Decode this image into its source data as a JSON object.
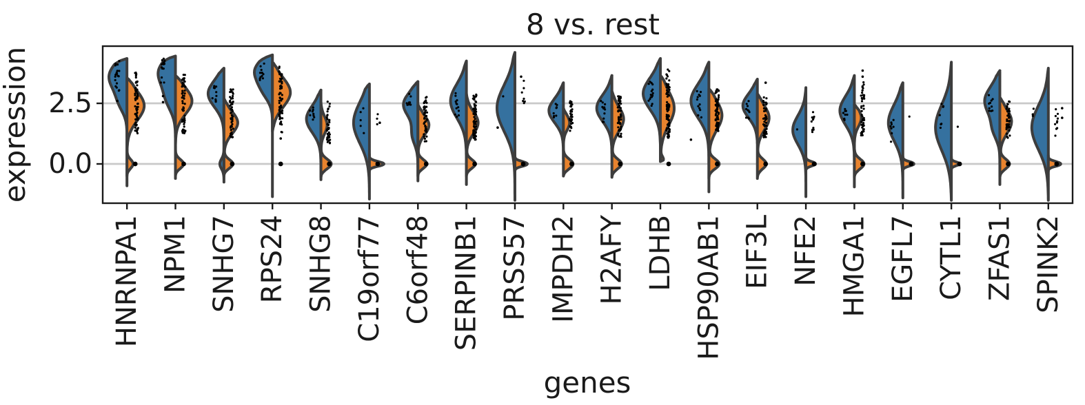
{
  "figure": {
    "title": "8 vs. rest",
    "xlabel": "genes",
    "ylabel": "expression",
    "ytick_labels": [
      "2.5",
      "0.0"
    ]
  },
  "colors": {
    "group_fill": "#35719f",
    "rest_fill": "#e8832e",
    "violin_edge": "#3d3d3d",
    "frame": "#1a1a1a",
    "grid": "#c9c9c9",
    "dots": "#000000",
    "text": "#1a1a1a",
    "background": "#ffffff"
  },
  "chart_data": {
    "type": "violin",
    "title": "8 vs. rest",
    "xlabel": "genes",
    "ylabel": "expression",
    "ylim": [
      -1.62,
      4.86
    ],
    "yticks": [
      2.5,
      0.0
    ],
    "ytick_labels": [
      "2.5",
      "0.0"
    ],
    "grid": "horizontal-at-yticks",
    "groups": [
      {
        "name": "8",
        "side": "left",
        "color": "#35719f"
      },
      {
        "name": "rest",
        "side": "right",
        "color": "#e8832e"
      }
    ],
    "categories": [
      "HNRNPA1",
      "NPM1",
      "SNHG7",
      "RPS24",
      "SNHG8",
      "C19orf77",
      "C6orf48",
      "SERPINB1",
      "PRSS57",
      "IMPDH2",
      "H2AFY",
      "LDHB",
      "HSP90AB1",
      "EIF3L",
      "NFE2",
      "HMGA1",
      "EGFL7",
      "CYTL1",
      "ZFAS1",
      "SPINK2"
    ],
    "violins": [
      {
        "name": "HNRNPA1",
        "left": {
          "range": [
            -0.9,
            4.35
          ],
          "bumps": [
            [
              3.6,
              0.6,
              26
            ],
            [
              2.5,
              0.4,
              8
            ]
          ]
        },
        "right": {
          "range": [
            -0.5,
            3.55
          ],
          "bumps": [
            [
              2.4,
              0.6,
              25
            ],
            [
              0,
              0.18,
              9
            ]
          ]
        },
        "dots": {
          "main": [
            14,
            1.2,
            3.9,
            65
          ],
          "side": [
            -14,
            3.0,
            4.25,
            20
          ],
          "zero": true,
          "extra": [
            [
              -14,
              2.6
            ]
          ]
        }
      },
      {
        "name": "NPM1",
        "left": {
          "range": [
            -0.6,
            4.45
          ],
          "bumps": [
            [
              3.8,
              0.55,
              24
            ],
            [
              2.7,
              0.5,
              12
            ]
          ]
        },
        "right": {
          "range": [
            -0.5,
            3.65
          ],
          "bumps": [
            [
              2.6,
              0.55,
              24
            ],
            [
              0,
              0.18,
              12
            ]
          ]
        },
        "dots": {
          "main": [
            12,
            1.2,
            3.7,
            60
          ],
          "side": [
            -18,
            3.3,
            4.35,
            14
          ],
          "zero": true,
          "extra": [
            [
              -18,
              2.8
            ],
            [
              -18,
              2.55
            ]
          ]
        }
      },
      {
        "name": "SNHG7",
        "left": {
          "range": [
            -0.75,
            3.95
          ],
          "bumps": [
            [
              2.9,
              0.55,
              23
            ],
            [
              0,
              0.2,
              6
            ]
          ]
        },
        "right": {
          "range": [
            -0.5,
            2.7
          ],
          "bumps": [
            [
              1.7,
              0.45,
              20
            ],
            [
              0,
              0.18,
              13
            ]
          ]
        },
        "dots": {
          "main": [
            11,
            1.1,
            3.3,
            55
          ],
          "side": [
            -14,
            2.5,
            3.4,
            10
          ],
          "zero": true,
          "extra": []
        }
      },
      {
        "name": "RPS24",
        "left": {
          "range": [
            -1.35,
            4.5
          ],
          "bumps": [
            [
              3.85,
              0.5,
              25
            ],
            [
              3.0,
              0.4,
              10
            ]
          ]
        },
        "right": {
          "range": [
            1.35,
            4.2
          ],
          "bumps": [
            [
              2.95,
              0.6,
              26
            ]
          ]
        },
        "dots": {
          "main": [
            12,
            1.3,
            4.1,
            60
          ],
          "side": [
            -15,
            3.3,
            4.3,
            12
          ],
          "zero": true,
          "extra": [
            [
              12,
              1.05
            ]
          ]
        }
      },
      {
        "name": "SNHG8",
        "left": {
          "range": [
            -0.65,
            3.05
          ],
          "bumps": [
            [
              1.85,
              0.55,
              21
            ]
          ]
        },
        "right": {
          "range": [
            -0.55,
            2.55
          ],
          "bumps": [
            [
              1.6,
              0.35,
              9
            ],
            [
              0,
              0.2,
              15
            ]
          ]
        },
        "dots": {
          "main": [
            11,
            0.85,
            2.6,
            40
          ],
          "side": [
            -13,
            1.6,
            2.5,
            9
          ],
          "zero": true,
          "extra": []
        }
      },
      {
        "name": "C19orf77",
        "left": {
          "range": [
            -1.45,
            3.3
          ],
          "bumps": [
            [
              1.7,
              0.85,
              23
            ]
          ]
        },
        "right": {
          "range": [
            -0.3,
            0.4
          ],
          "bumps": [
            [
              0,
              0.1,
              21
            ]
          ]
        },
        "dots": {
          "main": [
            12,
            1.6,
            2.2,
            3
          ],
          "side": [
            -10,
            1.2,
            2.3,
            5
          ],
          "zero": true,
          "extra": [
            [
              15,
              1.7
            ]
          ]
        }
      },
      {
        "name": "C6orf48",
        "left": {
          "range": [
            -0.7,
            3.4
          ],
          "bumps": [
            [
              2.45,
              0.5,
              21
            ],
            [
              1.2,
              0.4,
              8
            ]
          ]
        },
        "right": {
          "range": [
            -0.5,
            2.45
          ],
          "bumps": [
            [
              1.6,
              0.4,
              16
            ],
            [
              0,
              0.18,
              13
            ]
          ]
        },
        "dots": {
          "main": [
            11,
            0.9,
            2.8,
            48
          ],
          "side": [
            -13,
            2.0,
            2.9,
            10
          ],
          "zero": true,
          "extra": []
        }
      },
      {
        "name": "SERPINB1",
        "left": {
          "range": [
            -0.85,
            4.25
          ],
          "bumps": [
            [
              2.6,
              0.7,
              23
            ]
          ]
        },
        "right": {
          "range": [
            -0.5,
            2.9
          ],
          "bumps": [
            [
              1.7,
              0.45,
              17
            ],
            [
              0,
              0.18,
              13
            ]
          ]
        },
        "dots": {
          "main": [
            12,
            1.0,
            2.95,
            65
          ],
          "side": [
            -14,
            1.9,
            3.0,
            12
          ],
          "zero": true,
          "extra": []
        }
      },
      {
        "name": "PRSS57",
        "left": {
          "range": [
            -1.5,
            4.6
          ],
          "bumps": [
            [
              2.3,
              0.95,
              26
            ]
          ]
        },
        "right": {
          "range": [
            -0.3,
            0.35
          ],
          "bumps": [
            [
              0,
              0.1,
              18
            ]
          ]
        },
        "dots": {
          "main": [
            12,
            2.3,
            3.5,
            7
          ],
          "side": [
            -18,
            2.7,
            2.9,
            1
          ],
          "zero": true,
          "extra": [
            [
              9,
              3.6
            ],
            [
              -25,
              1.5
            ]
          ]
        }
      },
      {
        "name": "IMPDH2",
        "left": {
          "range": [
            0.2,
            3.35
          ],
          "bumps": [
            [
              2.2,
              0.5,
              21
            ]
          ]
        },
        "right": {
          "range": [
            -0.5,
            2.3
          ],
          "bumps": [
            [
              1.7,
              0.3,
              9
            ],
            [
              0,
              0.2,
              14
            ]
          ]
        },
        "dots": {
          "main": [
            11,
            1.35,
            2.6,
            35
          ],
          "side": [
            -12,
            1.8,
            2.5,
            8
          ],
          "zero": true,
          "extra": []
        }
      },
      {
        "name": "H2AFY",
        "left": {
          "range": [
            0.45,
            3.65
          ],
          "bumps": [
            [
              2.3,
              0.55,
              22
            ]
          ]
        },
        "right": {
          "range": [
            -0.55,
            3.0
          ],
          "bumps": [
            [
              1.85,
              0.5,
              17
            ],
            [
              0,
              0.2,
              14
            ]
          ]
        },
        "dots": {
          "main": [
            11,
            1.1,
            2.8,
            55
          ],
          "side": [
            -13,
            1.6,
            2.7,
            11
          ],
          "zero": true,
          "extra": []
        }
      },
      {
        "name": "LDHB",
        "left": {
          "range": [
            0.75,
            4.35
          ],
          "bumps": [
            [
              2.9,
              0.65,
              25
            ]
          ]
        },
        "right": {
          "range": [
            0.1,
            3.65
          ],
          "bumps": [
            [
              2.3,
              0.7,
              20
            ],
            [
              0,
              0.18,
              12
            ]
          ]
        },
        "dots": {
          "main": [
            11,
            1.0,
            3.95,
            85
          ],
          "side": [
            -14,
            2.4,
            3.4,
            16
          ],
          "zero": true,
          "extra": []
        }
      },
      {
        "name": "HSP90AB1",
        "left": {
          "range": [
            -1.15,
            4.2
          ],
          "bumps": [
            [
              2.6,
              0.7,
              26
            ]
          ]
        },
        "right": {
          "range": [
            -0.6,
            3.1
          ],
          "bumps": [
            [
              2.0,
              0.6,
              19
            ],
            [
              0,
              0.2,
              15
            ]
          ]
        },
        "dots": {
          "main": [
            12,
            1.3,
            3.1,
            65
          ],
          "side": [
            -14,
            1.9,
            3.0,
            12
          ],
          "zero": true,
          "extra": [
            [
              -26,
              1.0
            ]
          ]
        }
      },
      {
        "name": "EIF3L",
        "left": {
          "range": [
            0.85,
            3.5
          ],
          "bumps": [
            [
              2.4,
              0.5,
              21
            ]
          ]
        },
        "right": {
          "range": [
            -0.6,
            2.9
          ],
          "bumps": [
            [
              1.9,
              0.5,
              17
            ],
            [
              0,
              0.2,
              13
            ]
          ]
        },
        "dots": {
          "main": [
            11,
            1.05,
            2.75,
            50
          ],
          "side": [
            -13,
            1.8,
            2.6,
            10
          ],
          "zero": true,
          "extra": [
            [
              12,
              3.35
            ]
          ]
        }
      },
      {
        "name": "NFE2",
        "left": {
          "range": [
            -1.35,
            3.15
          ],
          "bumps": [
            [
              1.4,
              0.6,
              19
            ]
          ]
        },
        "right": {
          "range": [
            -0.25,
            0.3
          ],
          "bumps": [
            [
              0,
              0.1,
              14
            ]
          ]
        },
        "dots": {
          "main": [
            10,
            1.3,
            2.2,
            12
          ],
          "side": [
            -12,
            1.4,
            1.5,
            1
          ],
          "zero": true,
          "extra": []
        }
      },
      {
        "name": "HMGA1",
        "left": {
          "range": [
            -0.95,
            3.65
          ],
          "bumps": [
            [
              2.2,
              0.6,
              21
            ]
          ]
        },
        "right": {
          "range": [
            -0.55,
            2.45
          ],
          "bumps": [
            [
              1.9,
              0.35,
              10
            ],
            [
              0,
              0.2,
              14
            ]
          ]
        },
        "dots": {
          "main": [
            12,
            1.15,
            3.4,
            50
          ],
          "side": [
            -13,
            1.7,
            2.5,
            9
          ],
          "zero": true,
          "extra": [
            [
              12,
              3.85
            ],
            [
              12,
              3.6
            ]
          ]
        }
      },
      {
        "name": "EGFL7",
        "left": {
          "range": [
            -1.4,
            3.35
          ],
          "bumps": [
            [
              1.7,
              0.75,
              21
            ]
          ]
        },
        "right": {
          "range": [
            -0.25,
            0.3
          ],
          "bumps": [
            [
              0,
              0.1,
              16
            ]
          ]
        },
        "dots": {
          "main": [
            11,
            1.9,
            2.1,
            1
          ],
          "side": [
            -16,
            0.9,
            2.0,
            8
          ],
          "zero": true,
          "extra": []
        }
      },
      {
        "name": "CYTL1",
        "left": {
          "range": [
            -1.5,
            4.2
          ],
          "bumps": [
            [
              1.5,
              0.95,
              23
            ]
          ]
        },
        "right": {
          "range": [
            -0.25,
            0.3
          ],
          "bumps": [
            [
              0,
              0.08,
              12
            ]
          ]
        },
        "dots": {
          "main": [
            11,
            1.5,
            1.6,
            1
          ],
          "side": [
            -14,
            1.1,
            2.5,
            7
          ],
          "zero": true,
          "extra": []
        }
      },
      {
        "name": "ZFAS1",
        "left": {
          "range": [
            -0.85,
            3.85
          ],
          "bumps": [
            [
              2.6,
              0.6,
              22
            ],
            [
              1.4,
              0.4,
              8
            ]
          ]
        },
        "right": {
          "range": [
            -0.55,
            2.75
          ],
          "bumps": [
            [
              1.75,
              0.5,
              17
            ],
            [
              0,
              0.2,
              14
            ]
          ]
        },
        "dots": {
          "main": [
            12,
            1.05,
            2.65,
            45
          ],
          "side": [
            -13,
            2.1,
            2.9,
            10
          ],
          "zero": true,
          "extra": []
        }
      },
      {
        "name": "SPINK2",
        "left": {
          "range": [
            -1.5,
            3.95
          ],
          "bumps": [
            [
              1.5,
              0.9,
              24
            ]
          ]
        },
        "right": {
          "range": [
            -0.3,
            0.35
          ],
          "bumps": [
            [
              0,
              0.1,
              18
            ]
          ]
        },
        "dots": {
          "main": [
            12,
            1.1,
            2.35,
            10
          ],
          "side": [
            -20,
            1.9,
            2.4,
            3
          ],
          "zero": true,
          "extra": [
            [
              20,
              2.3
            ],
            [
              20,
              1.9
            ]
          ]
        }
      }
    ]
  }
}
